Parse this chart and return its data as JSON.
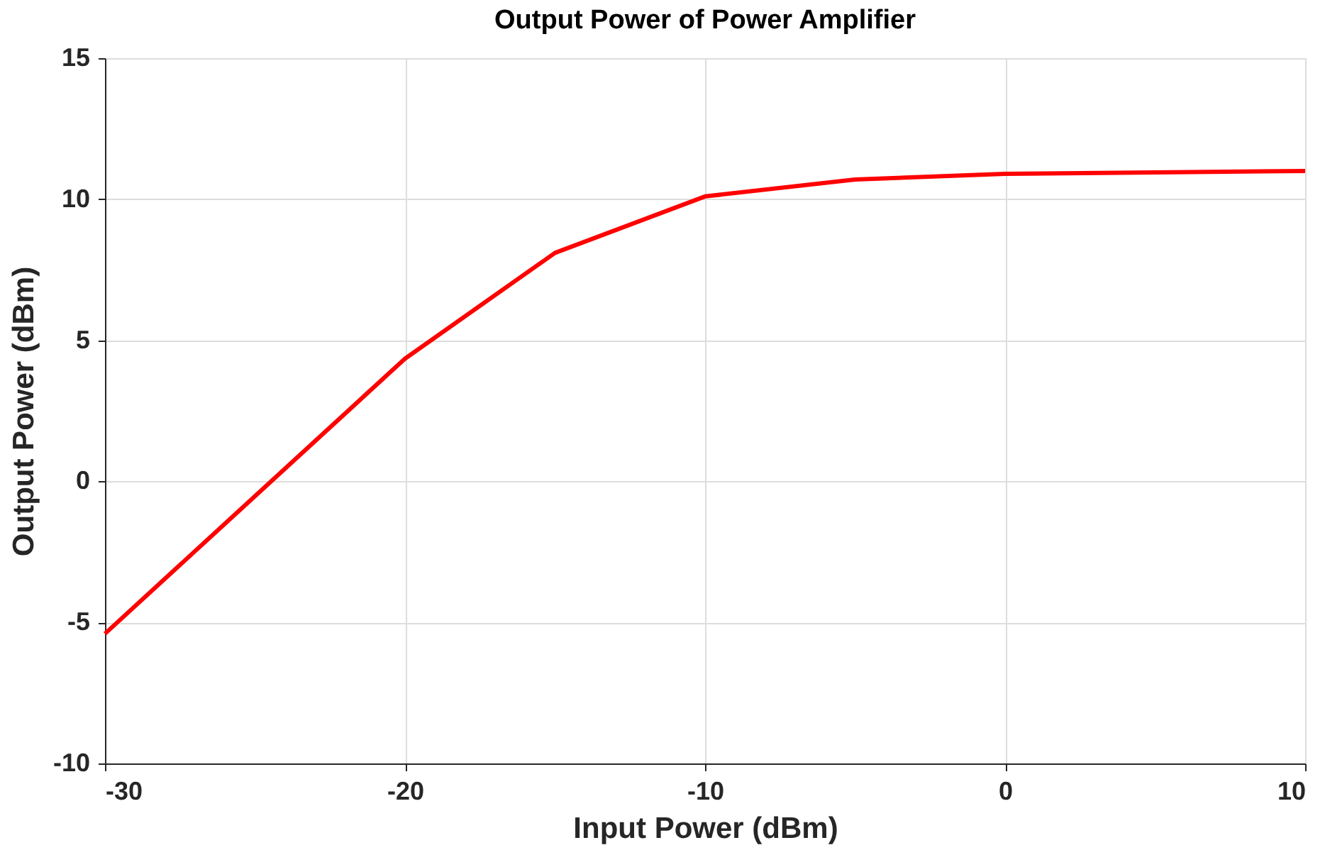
{
  "chart_data": {
    "type": "line",
    "title": "Output Power of Power Amplifier",
    "xlabel": "Input Power (dBm)",
    "ylabel": "Output Power (dBm)",
    "x": [
      -30,
      -20,
      -15,
      -10,
      -5,
      0,
      5,
      10
    ],
    "series": [
      {
        "color": "#ff0000",
        "values": [
          -5.4,
          4.35,
          8.1,
          10.1,
          10.7,
          10.9,
          10.95,
          11.0
        ]
      }
    ],
    "xlim": [
      -30,
      10
    ],
    "xticks": [
      -30,
      -20,
      -10,
      0,
      10
    ],
    "ylim": [
      -10,
      15
    ],
    "yticks": [
      -10,
      -5,
      0,
      5,
      10,
      15
    ],
    "grid": true,
    "marker": "none",
    "line_style": "solid"
  }
}
